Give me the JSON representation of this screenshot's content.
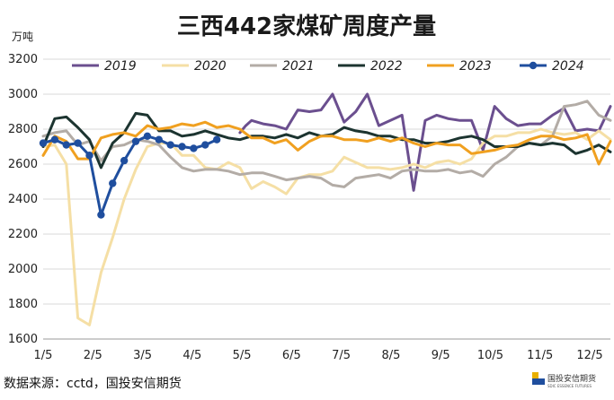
{
  "chart_data": {
    "type": "line",
    "title": "三西442家煤矿周度产量",
    "unit": "万吨",
    "ylim": [
      1600,
      3200
    ],
    "yticks": [
      "1600",
      "1800",
      "2000",
      "2200",
      "2400",
      "2600",
      "2800",
      "3000",
      "3200"
    ],
    "xticks": [
      "1/5",
      "2/5",
      "3/5",
      "4/5",
      "5/5",
      "6/5",
      "7/5",
      "8/5",
      "9/5",
      "10/5",
      "11/5",
      "12/5"
    ],
    "grid": "horizontal",
    "legend_position": "top",
    "series": [
      {
        "name": "2019",
        "color": "#6b4f8f",
        "marker": false,
        "values": [
          [
            17.0,
            2780
          ],
          [
            17.5,
            2820
          ],
          [
            18.0,
            2850
          ],
          [
            19.0,
            2830
          ],
          [
            20.0,
            2820
          ],
          [
            21.0,
            2800
          ],
          [
            22.0,
            2910
          ],
          [
            23.0,
            2900
          ],
          [
            24.0,
            2910
          ],
          [
            25.0,
            3000
          ],
          [
            26.0,
            2840
          ],
          [
            27.0,
            2900
          ],
          [
            28.0,
            3000
          ],
          [
            29.0,
            2820
          ],
          [
            30.0,
            2850
          ],
          [
            31.0,
            2880
          ],
          [
            32.0,
            2450
          ],
          [
            33.0,
            2850
          ],
          [
            34.0,
            2880
          ],
          [
            35.0,
            2860
          ],
          [
            36.0,
            2850
          ],
          [
            37.0,
            2850
          ],
          [
            38.0,
            2680
          ],
          [
            39.0,
            2930
          ],
          [
            40.0,
            2860
          ],
          [
            41.0,
            2820
          ],
          [
            42.0,
            2830
          ],
          [
            43.0,
            2830
          ],
          [
            44.0,
            2880
          ],
          [
            45.0,
            2920
          ],
          [
            46.0,
            2790
          ],
          [
            47.0,
            2800
          ],
          [
            48.0,
            2790
          ],
          [
            49.0,
            2930
          ]
        ]
      },
      {
        "name": "2020",
        "color": "#f5dfa5",
        "marker": false,
        "values": [
          [
            0,
            2700
          ],
          [
            1,
            2710
          ],
          [
            2,
            2600
          ],
          [
            3,
            1720
          ],
          [
            4,
            1680
          ],
          [
            5,
            1980
          ],
          [
            6,
            2180
          ],
          [
            7,
            2400
          ],
          [
            8,
            2570
          ],
          [
            9,
            2700
          ],
          [
            10,
            2720
          ],
          [
            11,
            2720
          ],
          [
            12,
            2650
          ],
          [
            13,
            2650
          ],
          [
            14,
            2580
          ],
          [
            15,
            2570
          ],
          [
            16,
            2610
          ],
          [
            17,
            2580
          ],
          [
            18,
            2460
          ],
          [
            19,
            2500
          ],
          [
            20,
            2470
          ],
          [
            21,
            2430
          ],
          [
            22,
            2520
          ],
          [
            23,
            2540
          ],
          [
            24,
            2540
          ],
          [
            25,
            2560
          ],
          [
            26,
            2640
          ],
          [
            27,
            2610
          ],
          [
            28,
            2580
          ],
          [
            29,
            2580
          ],
          [
            30,
            2570
          ],
          [
            31,
            2580
          ],
          [
            32,
            2600
          ],
          [
            33,
            2580
          ],
          [
            34,
            2610
          ],
          [
            35,
            2620
          ],
          [
            36,
            2600
          ],
          [
            37,
            2630
          ],
          [
            38,
            2720
          ],
          [
            39,
            2760
          ],
          [
            40,
            2760
          ],
          [
            41,
            2780
          ],
          [
            42,
            2780
          ],
          [
            43,
            2800
          ],
          [
            44,
            2780
          ],
          [
            45,
            2770
          ],
          [
            46,
            2780
          ],
          [
            47,
            2740
          ],
          [
            48,
            2790
          ],
          [
            49,
            2740
          ]
        ]
      },
      {
        "name": "2021",
        "color": "#b3aca6",
        "marker": false,
        "values": [
          [
            0,
            2760
          ],
          [
            1,
            2780
          ],
          [
            2,
            2790
          ],
          [
            3,
            2710
          ],
          [
            4,
            2730
          ],
          [
            5,
            2620
          ],
          [
            6,
            2700
          ],
          [
            7,
            2710
          ],
          [
            8,
            2740
          ],
          [
            9,
            2730
          ],
          [
            10,
            2710
          ],
          [
            11,
            2640
          ],
          [
            12,
            2580
          ],
          [
            13,
            2560
          ],
          [
            14,
            2570
          ],
          [
            15,
            2570
          ],
          [
            16,
            2560
          ],
          [
            17,
            2540
          ],
          [
            18,
            2550
          ],
          [
            19,
            2550
          ],
          [
            20,
            2530
          ],
          [
            21,
            2510
          ],
          [
            22,
            2520
          ],
          [
            23,
            2530
          ],
          [
            24,
            2520
          ],
          [
            25,
            2480
          ],
          [
            26,
            2470
          ],
          [
            27,
            2520
          ],
          [
            28,
            2530
          ],
          [
            29,
            2540
          ],
          [
            30,
            2520
          ],
          [
            31,
            2560
          ],
          [
            32,
            2570
          ],
          [
            33,
            2560
          ],
          [
            34,
            2560
          ],
          [
            35,
            2570
          ],
          [
            36,
            2550
          ],
          [
            37,
            2560
          ],
          [
            38,
            2530
          ],
          [
            39,
            2600
          ],
          [
            40,
            2640
          ],
          [
            41,
            2700
          ],
          [
            42,
            2720
          ],
          [
            43,
            2710
          ],
          [
            44,
            2760
          ],
          [
            45,
            2930
          ],
          [
            46,
            2940
          ],
          [
            47,
            2960
          ],
          [
            48,
            2880
          ],
          [
            49,
            2850
          ]
        ]
      },
      {
        "name": "2022",
        "color": "#1c3430",
        "marker": false,
        "values": [
          [
            0,
            2700
          ],
          [
            1,
            2860
          ],
          [
            2,
            2870
          ],
          [
            3,
            2810
          ],
          [
            4,
            2740
          ],
          [
            5,
            2580
          ],
          [
            6,
            2720
          ],
          [
            7,
            2780
          ],
          [
            8,
            2890
          ],
          [
            9,
            2880
          ],
          [
            10,
            2790
          ],
          [
            11,
            2790
          ],
          [
            12,
            2760
          ],
          [
            13,
            2770
          ],
          [
            14,
            2790
          ],
          [
            15,
            2770
          ],
          [
            16,
            2750
          ],
          [
            17,
            2740
          ],
          [
            18,
            2760
          ],
          [
            19,
            2760
          ],
          [
            20,
            2750
          ],
          [
            21,
            2770
          ],
          [
            22,
            2750
          ],
          [
            23,
            2780
          ],
          [
            24,
            2760
          ],
          [
            25,
            2770
          ],
          [
            26,
            2810
          ],
          [
            27,
            2790
          ],
          [
            28,
            2780
          ],
          [
            29,
            2760
          ],
          [
            30,
            2760
          ],
          [
            31,
            2740
          ],
          [
            32,
            2740
          ],
          [
            33,
            2720
          ],
          [
            34,
            2720
          ],
          [
            35,
            2730
          ],
          [
            36,
            2750
          ],
          [
            37,
            2760
          ],
          [
            38,
            2740
          ],
          [
            39,
            2700
          ],
          [
            40,
            2700
          ],
          [
            41,
            2700
          ],
          [
            42,
            2720
          ],
          [
            43,
            2710
          ],
          [
            44,
            2720
          ],
          [
            45,
            2710
          ],
          [
            46,
            2660
          ],
          [
            47,
            2680
          ],
          [
            48,
            2710
          ],
          [
            49,
            2670
          ]
        ]
      },
      {
        "name": "2023",
        "color": "#f0a020",
        "marker": false,
        "values": [
          [
            0,
            2650
          ],
          [
            1,
            2760
          ],
          [
            2,
            2730
          ],
          [
            3,
            2630
          ],
          [
            4,
            2630
          ],
          [
            5,
            2750
          ],
          [
            6,
            2770
          ],
          [
            7,
            2780
          ],
          [
            8,
            2760
          ],
          [
            9,
            2820
          ],
          [
            10,
            2800
          ],
          [
            11,
            2810
          ],
          [
            12,
            2830
          ],
          [
            13,
            2820
          ],
          [
            14,
            2840
          ],
          [
            15,
            2810
          ],
          [
            16,
            2820
          ],
          [
            17,
            2800
          ],
          [
            18,
            2750
          ],
          [
            19,
            2750
          ],
          [
            20,
            2720
          ],
          [
            21,
            2740
          ],
          [
            22,
            2680
          ],
          [
            23,
            2730
          ],
          [
            24,
            2760
          ],
          [
            25,
            2760
          ],
          [
            26,
            2740
          ],
          [
            27,
            2740
          ],
          [
            28,
            2730
          ],
          [
            29,
            2750
          ],
          [
            30,
            2730
          ],
          [
            31,
            2750
          ],
          [
            32,
            2720
          ],
          [
            33,
            2700
          ],
          [
            34,
            2720
          ],
          [
            35,
            2710
          ],
          [
            36,
            2710
          ],
          [
            37,
            2660
          ],
          [
            38,
            2670
          ],
          [
            39,
            2680
          ],
          [
            40,
            2700
          ],
          [
            41,
            2710
          ],
          [
            42,
            2740
          ],
          [
            43,
            2760
          ],
          [
            44,
            2760
          ],
          [
            45,
            2740
          ],
          [
            46,
            2750
          ],
          [
            47,
            2770
          ],
          [
            48,
            2600
          ],
          [
            49,
            2730
          ]
        ]
      },
      {
        "name": "2024",
        "color": "#1f4e9e",
        "marker": true,
        "values": [
          [
            0,
            2720
          ],
          [
            1,
            2740
          ],
          [
            2,
            2710
          ],
          [
            3,
            2720
          ],
          [
            4,
            2650
          ],
          [
            5,
            2310
          ],
          [
            6,
            2490
          ],
          [
            7,
            2620
          ],
          [
            8,
            2730
          ],
          [
            9,
            2760
          ],
          [
            10,
            2740
          ],
          [
            11,
            2710
          ],
          [
            12,
            2700
          ],
          [
            13,
            2690
          ],
          [
            14,
            2710
          ],
          [
            15,
            2740
          ]
        ]
      }
    ]
  },
  "source": "数据来源：cctd，国投安信期货",
  "logo": {
    "name": "国投安信期货",
    "subtitle": "SDIC ESSENCE FUTURES",
    "colors": [
      "#e8b000",
      "#1f4e9e"
    ]
  }
}
